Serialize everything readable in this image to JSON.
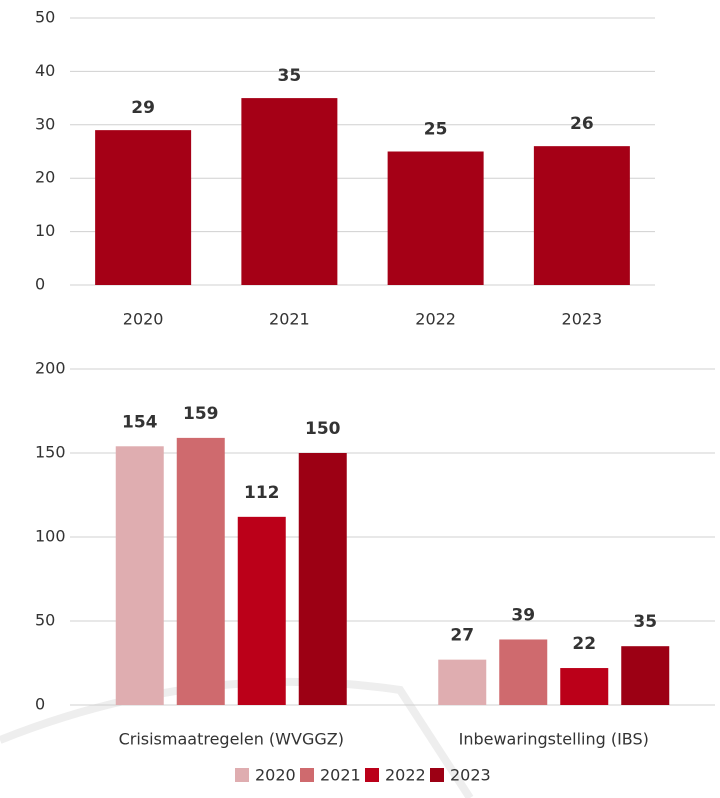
{
  "chart_data": [
    {
      "type": "bar",
      "categories": [
        "2020",
        "2021",
        "2022",
        "2023"
      ],
      "values": [
        29,
        35,
        25,
        26
      ],
      "color": "#a50016",
      "ylim": [
        0,
        50
      ],
      "yticks": [
        0,
        10,
        20,
        30,
        40,
        50
      ],
      "grid": true
    },
    {
      "type": "grouped_bar",
      "categories": [
        "Crisismaatregelen (WVGGZ)",
        "Inbewaringstelling (IBS)"
      ],
      "series": [
        {
          "name": "2020",
          "color": "#dfadb0",
          "values": [
            154,
            27
          ]
        },
        {
          "name": "2021",
          "color": "#cf6a6e",
          "values": [
            159,
            39
          ]
        },
        {
          "name": "2022",
          "color": "#bb0019",
          "values": [
            112,
            22
          ]
        },
        {
          "name": "2023",
          "color": "#9c0014",
          "values": [
            150,
            35
          ]
        }
      ],
      "ylim": [
        0,
        200
      ],
      "yticks": [
        0,
        50,
        100,
        150,
        200
      ],
      "grid": true,
      "legend": "bottom"
    }
  ]
}
